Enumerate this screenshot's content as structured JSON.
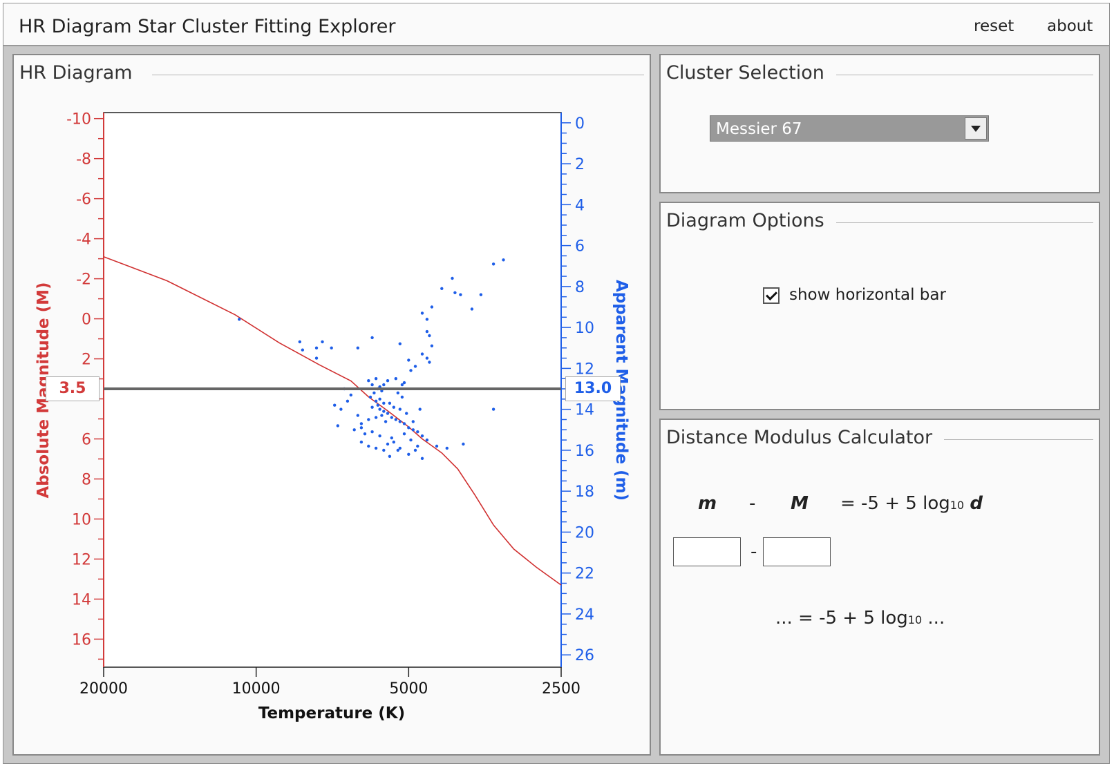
{
  "header": {
    "title": "HR Diagram Star Cluster Fitting Explorer",
    "reset_label": "reset",
    "about_label": "about"
  },
  "hr_panel": {
    "title": "HR Diagram"
  },
  "chart_data": {
    "type": "scatter",
    "xlabel": "Temperature (K)",
    "ylabel_left": "Absolute Magnitude (M)",
    "ylabel_right": "Apparent Magnitude (m)",
    "x_scale": "log",
    "x_reversed": true,
    "xlim": [
      20000,
      2500
    ],
    "x_ticks": [
      20000,
      10000,
      5000,
      2500
    ],
    "ylim_left": [
      -10.3,
      17.4
    ],
    "ylim_right": [
      -0.5,
      26.6
    ],
    "y_left_reversed": true,
    "y_right_reversed": true,
    "y_left_ticks": [
      -10,
      -8,
      -6,
      -4,
      -2,
      0,
      2,
      4,
      6,
      8,
      10,
      12,
      14,
      16
    ],
    "y_left_tick_labels": [
      "-10",
      "-8",
      "-6",
      "-4",
      "-2",
      "0",
      "2",
      "",
      "6",
      "8",
      "10",
      "12",
      "14",
      "16"
    ],
    "y_right_ticks": [
      0,
      2,
      4,
      6,
      8,
      10,
      12,
      14,
      16,
      18,
      20,
      22,
      24,
      26
    ],
    "y_right_tick_labels": [
      "0",
      "2",
      "4",
      "6",
      "8",
      "10",
      "12",
      "14",
      "16",
      "18",
      "20",
      "22",
      "24",
      "26"
    ],
    "left_color": "#d23a3a",
    "right_color": "#1e5ee8",
    "horizontal_bar": {
      "absolute_magnitude": "3.5",
      "apparent_magnitude": "13.0",
      "M": 3.5,
      "m": 13.0
    },
    "main_sequence_line": {
      "color": "#d03030",
      "points": [
        [
          20000,
          -3.1
        ],
        [
          15000,
          -1.9
        ],
        [
          11000,
          -0.2
        ],
        [
          9000,
          1.2
        ],
        [
          7500,
          2.3
        ],
        [
          6500,
          3.1
        ],
        [
          6000,
          3.9
        ],
        [
          5500,
          4.6
        ],
        [
          5000,
          5.4
        ],
        [
          4700,
          6.0
        ],
        [
          4300,
          6.7
        ],
        [
          4000,
          7.5
        ],
        [
          3700,
          8.8
        ],
        [
          3400,
          10.3
        ],
        [
          3100,
          11.5
        ],
        [
          2800,
          12.4
        ],
        [
          2500,
          13.3
        ]
      ]
    },
    "series": [
      {
        "color": "#1e5ee8",
        "points_T_m": [
          [
            10800,
            9.6
          ],
          [
            8200,
            10.7
          ],
          [
            8100,
            11.1
          ],
          [
            7600,
            11.0
          ],
          [
            7400,
            10.7
          ],
          [
            7100,
            11.0
          ],
          [
            7600,
            11.5
          ],
          [
            6300,
            11.0
          ],
          [
            5900,
            10.5
          ],
          [
            5200,
            10.8
          ],
          [
            5000,
            11.6
          ],
          [
            4600,
            10.2
          ],
          [
            4500,
            9.0
          ],
          [
            4300,
            8.1
          ],
          [
            4100,
            7.6
          ],
          [
            4050,
            8.3
          ],
          [
            3950,
            8.4
          ],
          [
            3750,
            9.1
          ],
          [
            3600,
            8.4
          ],
          [
            3400,
            6.9
          ],
          [
            3250,
            6.7
          ],
          [
            4700,
            9.3
          ],
          [
            4600,
            9.6
          ],
          [
            4550,
            10.4
          ],
          [
            4500,
            10.9
          ],
          [
            4700,
            11.3
          ],
          [
            4600,
            11.5
          ],
          [
            4550,
            11.7
          ],
          [
            4850,
            11.9
          ],
          [
            4950,
            12.1
          ],
          [
            5100,
            12.7
          ],
          [
            5300,
            12.5
          ],
          [
            5600,
            12.8
          ],
          [
            5700,
            12.9
          ],
          [
            5800,
            12.5
          ],
          [
            5900,
            12.8
          ],
          [
            6000,
            12.6
          ],
          [
            5750,
            13.0
          ],
          [
            5650,
            13.1
          ],
          [
            5850,
            13.2
          ],
          [
            5950,
            13.4
          ],
          [
            5700,
            13.5
          ],
          [
            5800,
            13.6
          ],
          [
            5750,
            13.8
          ],
          [
            5900,
            13.9
          ],
          [
            5700,
            14.0
          ],
          [
            5600,
            14.1
          ],
          [
            5650,
            14.3
          ],
          [
            5500,
            14.2
          ],
          [
            5400,
            14.4
          ],
          [
            5300,
            14.5
          ],
          [
            5200,
            14.6
          ],
          [
            5100,
            14.7
          ],
          [
            5000,
            14.9
          ],
          [
            4900,
            15.0
          ],
          [
            4800,
            15.1
          ],
          [
            4700,
            15.3
          ],
          [
            5450,
            13.7
          ],
          [
            5350,
            13.9
          ],
          [
            5200,
            14.0
          ],
          [
            5050,
            14.2
          ],
          [
            5250,
            13.2
          ],
          [
            5150,
            12.8
          ],
          [
            6500,
            13.3
          ],
          [
            6600,
            13.6
          ],
          [
            6800,
            14.0
          ],
          [
            6300,
            14.3
          ],
          [
            6200,
            14.7
          ],
          [
            6400,
            15.0
          ],
          [
            6100,
            15.2
          ],
          [
            6200,
            15.6
          ],
          [
            6000,
            15.8
          ],
          [
            5800,
            15.9
          ],
          [
            5600,
            16.0
          ],
          [
            5500,
            15.7
          ],
          [
            5400,
            15.4
          ],
          [
            5200,
            15.9
          ],
          [
            5000,
            16.2
          ],
          [
            4800,
            15.8
          ],
          [
            4700,
            16.4
          ],
          [
            4600,
            15.5
          ],
          [
            4400,
            15.8
          ],
          [
            3400,
            14.0
          ],
          [
            3900,
            15.7
          ],
          [
            4200,
            15.9
          ],
          [
            6700,
            13.0
          ],
          [
            7000,
            13.8
          ],
          [
            6900,
            14.8
          ],
          [
            5350,
            15.6
          ],
          [
            5100,
            15.2
          ],
          [
            4900,
            14.6
          ],
          [
            4750,
            14.0
          ],
          [
            5150,
            13.4
          ],
          [
            5600,
            13.7
          ],
          [
            5800,
            14.4
          ],
          [
            5500,
            12.6
          ],
          [
            5550,
            14.6
          ],
          [
            5900,
            15.1
          ],
          [
            6000,
            14.5
          ],
          [
            6200,
            14.9
          ],
          [
            5700,
            15.3
          ],
          [
            5450,
            16.3
          ],
          [
            5250,
            16.0
          ],
          [
            4950,
            15.5
          ],
          [
            4850,
            16.0
          ]
        ]
      }
    ]
  },
  "cluster_panel": {
    "title": "Cluster Selection",
    "selected": "Messier 67"
  },
  "options_panel": {
    "title": "Diagram Options",
    "show_bar_label": "show horizontal bar",
    "show_bar_checked": true
  },
  "calc_panel": {
    "title": "Distance Modulus Calculator",
    "m": "m",
    "minus": "-",
    "M": "M",
    "eq_prefix": "= -5 + 5 log",
    "sub10": "10",
    "d": "d",
    "input_minus": "-",
    "result_prefix": "... = -5 + 5 log",
    "result_suffix": " ..."
  }
}
